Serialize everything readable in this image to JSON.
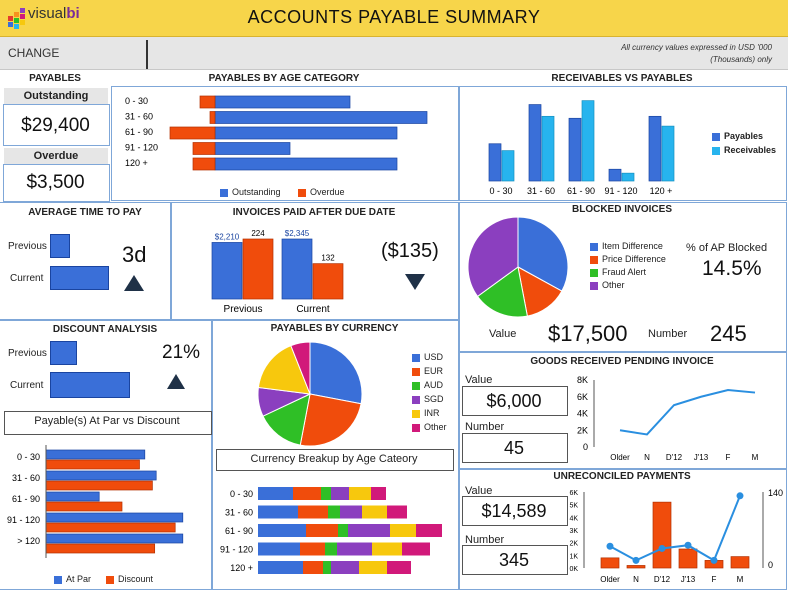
{
  "header": {
    "logo_text_a": "visual",
    "logo_text_b": "bi",
    "title": "ACCOUNTS PAYABLE SUMMARY"
  },
  "toolbar": {
    "change_label": "CHANGE",
    "currency_note": "All currency values expressed in USD '000 (Thousands) only"
  },
  "payables": {
    "title": "PAYABLES",
    "outstanding_label": "Outstanding",
    "outstanding_value": "$29,400",
    "overdue_label": "Overdue",
    "overdue_value": "$3,500"
  },
  "colors": {
    "blue": "#3a6fd8",
    "orange": "#f04c0c",
    "lightblue": "#27b4ee",
    "green": "#2fbf26",
    "purple": "#8b3fbf",
    "yellow": "#f7c80d",
    "magenta": "#d1197a",
    "navy": "#1f3147"
  },
  "age_chart": {
    "title": "PAYABLES BY AGE CATEGORY",
    "legend": [
      "Outstanding",
      "Overdue"
    ],
    "chart_data": {
      "type": "bar",
      "categories": [
        "0 - 30",
        "31 - 60",
        "61 - 90",
        "91 - 120",
        "120 +"
      ],
      "series": [
        {
          "name": "Outstanding",
          "values": [
            135,
            212,
            182,
            75,
            182
          ]
        },
        {
          "name": "Overdue",
          "values": [
            15,
            5,
            45,
            22,
            22
          ]
        }
      ]
    }
  },
  "recv_chart": {
    "title": "RECEIVABLES VS PAYABLES",
    "legend": [
      "Payables",
      "Receivables"
    ],
    "chart_data": {
      "type": "bar",
      "categories": [
        "0 - 30",
        "31 - 60",
        "61 - 90",
        "91 - 120",
        "120 +"
      ],
      "series": [
        {
          "name": "Payables",
          "values": [
            38,
            78,
            64,
            12,
            66
          ]
        },
        {
          "name": "Receivables",
          "values": [
            31,
            66,
            82,
            8,
            56
          ]
        }
      ]
    }
  },
  "avg_time": {
    "title": "AVERAGE TIME TO PAY",
    "previous_label": "Previous",
    "current_label": "Current",
    "value": "3d",
    "previous": 0.25,
    "current": 0.75
  },
  "paid_after": {
    "title": "INVOICES PAID AFTER DUE DATE",
    "value": "($135)",
    "chart_data": {
      "type": "bar",
      "categories": [
        "Previous",
        "Current"
      ],
      "series": [
        {
          "values": [
            2210,
            2345
          ],
          "labels": [
            "$2,210",
            "$2,345"
          ]
        },
        {
          "values": [
            224,
            132
          ],
          "labels": [
            "224",
            "132"
          ]
        }
      ]
    }
  },
  "blocked": {
    "title": "BLOCKED INVOICES",
    "pct_label": "% of AP Blocked",
    "pct_value": "14.5%",
    "value_label": "Value",
    "value": "$17,500",
    "number_label": "Number",
    "number": "245",
    "chart_data": {
      "type": "pie",
      "labels": [
        "Item Difference",
        "Price Difference",
        "Fraud Alert",
        "Other"
      ],
      "values": [
        33,
        14,
        18,
        35
      ],
      "colors": [
        "#3a6fd8",
        "#f04c0c",
        "#2fbf26",
        "#8b3fbf"
      ]
    }
  },
  "discount": {
    "title": "DISCOUNT ANALYSIS",
    "previous_label": "Previous",
    "current_label": "Current",
    "value": "21%",
    "previous": 0.33,
    "current": 1.0,
    "sub_title": "Payable(s) At Par vs Discount",
    "legend": [
      "At Par",
      "Discount"
    ],
    "chart_data": {
      "type": "bar",
      "categories": [
        "0 - 30",
        "31 - 60",
        "61 - 90",
        "91 - 120",
        "> 120"
      ],
      "series": [
        {
          "name": "At Par",
          "values": [
            130,
            145,
            70,
            180,
            180
          ]
        },
        {
          "name": "Discount",
          "values": [
            123,
            140,
            100,
            170,
            143
          ]
        }
      ]
    }
  },
  "currency": {
    "title": "PAYABLES BY CURRENCY",
    "sub_title": "Currency Breakup by Age Cateory",
    "chart_data": {
      "type": "pie",
      "labels": [
        "USD",
        "EUR",
        "AUD",
        "SGD",
        "INR",
        "Other"
      ],
      "values": [
        28,
        25,
        15,
        9,
        17,
        6
      ],
      "colors": [
        "#3a6fd8",
        "#f04c0c",
        "#2fbf26",
        "#8b3fbf",
        "#f7c80d",
        "#d1197a"
      ]
    },
    "stack_data": {
      "type": "bar",
      "categories": [
        "0 - 30",
        "31 - 60",
        "61 - 90",
        "91 - 120",
        "120 +"
      ],
      "rows": [
        [
          35,
          28,
          10,
          18,
          22,
          15
        ],
        [
          40,
          30,
          12,
          22,
          25,
          20
        ],
        [
          48,
          32,
          10,
          42,
          26,
          26
        ],
        [
          42,
          25,
          12,
          35,
          30,
          28
        ],
        [
          45,
          20,
          8,
          28,
          28,
          24
        ]
      ]
    }
  },
  "grpi": {
    "title": "GOODS RECEIVED PENDING INVOICE",
    "value_label": "Value",
    "value": "$6,000",
    "number_label": "Number",
    "number": "45",
    "chart_data": {
      "type": "line",
      "categories": [
        "Older",
        "N",
        "D'12",
        "J'13",
        "F",
        "M"
      ],
      "values": [
        2000,
        1500,
        5000,
        6000,
        6800,
        6500
      ],
      "yticks": [
        "8K",
        "6K",
        "4K",
        "2K",
        "0"
      ],
      "ylim": [
        0,
        8000
      ]
    }
  },
  "unrec": {
    "title": "UNRECONCILED PAYMENTS",
    "value_label": "Value",
    "value": "$14,589",
    "number_label": "Number",
    "number": "345",
    "chart_data": {
      "type": "bar",
      "categories": [
        "Older",
        "N",
        "D'12",
        "J'13",
        "F",
        "M"
      ],
      "bars": [
        800,
        200,
        5200,
        1500,
        600,
        900
      ],
      "line": [
        40,
        14,
        36,
        42,
        14,
        133
      ],
      "yticks": [
        "6K",
        "5K",
        "4K",
        "3K",
        "2K",
        "1K",
        "0K"
      ],
      "y2ticks": [
        "140",
        "0"
      ],
      "ylim": [
        0,
        6000
      ],
      "y2lim": [
        0,
        140
      ]
    }
  }
}
